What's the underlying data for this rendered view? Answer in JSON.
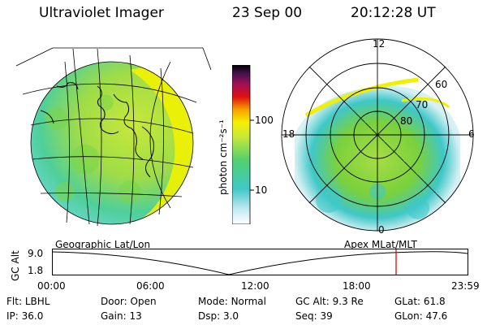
{
  "header": {
    "instrument": "Ultraviolet Imager",
    "date": "23 Sep 00",
    "time": "20:12:28 UT"
  },
  "colorbar": {
    "unit_label": "photon cm⁻²s⁻¹",
    "ticks": [
      "100",
      "10"
    ],
    "scale": "log"
  },
  "polar_plot": {
    "mlt_labels": [
      "12",
      "18",
      "6",
      "0"
    ],
    "lat_labels": [
      "60",
      "70",
      "80"
    ]
  },
  "panel_titles": {
    "left": "Geographic Lat/Lon",
    "right": "Apex MLat/MLT"
  },
  "alt_plot": {
    "ylabel": "GC Alt",
    "yticks": [
      "9.0",
      "1.8"
    ],
    "xticks": [
      "00:00",
      "06:00",
      "12:00",
      "18:00",
      "23:59"
    ],
    "current_time_marker": "20:12:28"
  },
  "info": {
    "row1": [
      {
        "label": "Flt:",
        "value": "LBHL"
      },
      {
        "label": "Door:",
        "value": "Open"
      },
      {
        "label": "Mode:",
        "value": "Normal"
      },
      {
        "label": "GC Alt:",
        "value": "9.3 Re"
      },
      {
        "label": "GLat:",
        "value": "61.8"
      }
    ],
    "row2": [
      {
        "label": "IP:",
        "value": "36.0"
      },
      {
        "label": "Gain:",
        "value": "13"
      },
      {
        "label": "Dsp:",
        "value": "3.0"
      },
      {
        "label": "Seq:",
        "value": "39"
      },
      {
        "label": "GLon:",
        "value": "47.6"
      }
    ]
  },
  "colors": {
    "accent_marker": "#cc0000",
    "aurora_high": "#f0f000",
    "aurora_mid": "#7ad13c",
    "aurora_low": "#3fc7c7"
  }
}
